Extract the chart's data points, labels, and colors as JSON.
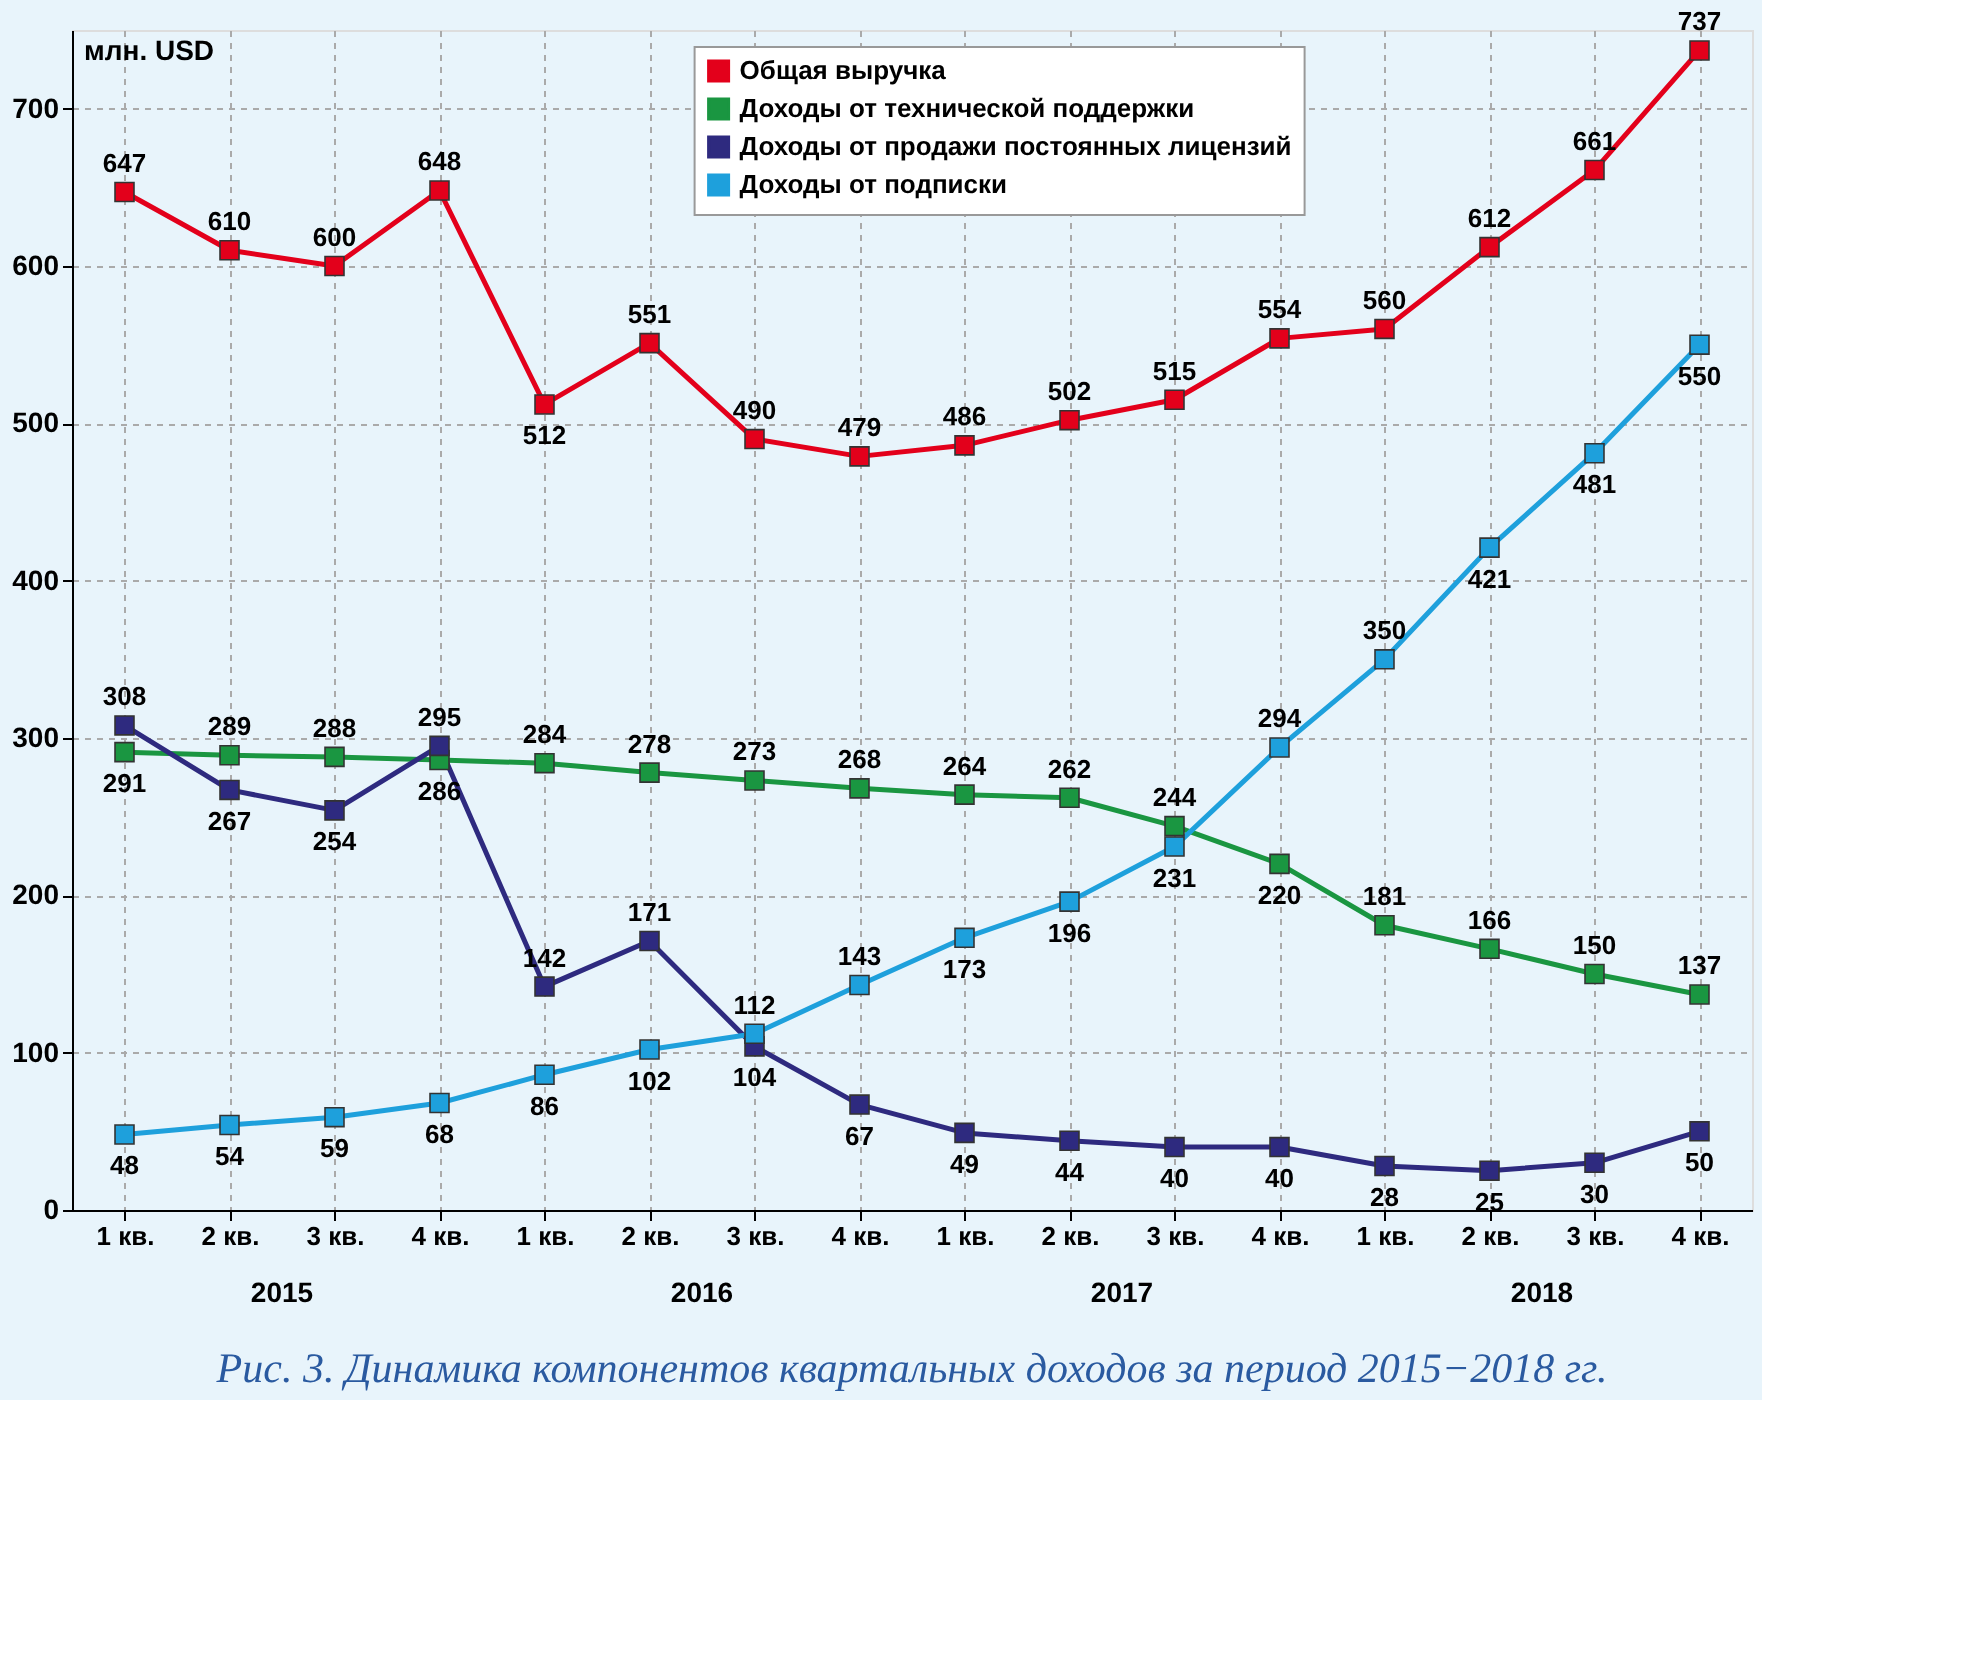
{
  "chart_data": {
    "type": "line",
    "title": "Рис. 3. Динамика компонентов квартальных доходов за период 2015−2018 гг.",
    "ylabel": "млн. USD",
    "categories": [
      "1 кв.",
      "2 кв.",
      "3 кв.",
      "4 кв.",
      "1 кв.",
      "2 кв.",
      "3 кв.",
      "4 кв.",
      "1 кв.",
      "2 кв.",
      "3 кв.",
      "4 кв.",
      "1 кв.",
      "2 кв.",
      "3 кв.",
      "4 кв."
    ],
    "annotations": [
      "2015",
      "2016",
      "2017",
      "2018"
    ],
    "series": [
      {
        "name": "Общая выручка",
        "color": "#e3001b",
        "values": [
          647,
          610,
          600,
          648,
          512,
          551,
          490,
          479,
          486,
          502,
          515,
          554,
          560,
          612,
          661,
          737
        ]
      },
      {
        "name": "Доходы от технической поддержки",
        "color": "#1a9641",
        "values": [
          291,
          289,
          288,
          286,
          284,
          278,
          273,
          268,
          264,
          262,
          244,
          220,
          181,
          166,
          150,
          137
        ]
      },
      {
        "name": "Доходы от продажи постоянных лицензий",
        "color": "#2e2a7f",
        "values": [
          308,
          267,
          254,
          295,
          142,
          171,
          104,
          67,
          49,
          44,
          40,
          40,
          28,
          25,
          30,
          50
        ]
      },
      {
        "name": "Доходы от подписки",
        "color": "#1ea0dc",
        "values": [
          48,
          54,
          59,
          68,
          86,
          102,
          112,
          143,
          173,
          196,
          231,
          294,
          350,
          421,
          481,
          550
        ]
      }
    ],
    "ylim": [
      0,
      750
    ],
    "yticks": [
      0,
      100,
      200,
      300,
      400,
      500,
      600,
      700
    ],
    "grid": true,
    "legend": "top",
    "marker": "square",
    "line_style": "solid",
    "data_labels": true
  }
}
